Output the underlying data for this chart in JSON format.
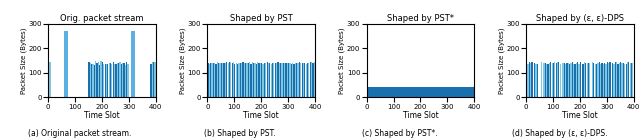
{
  "title_a": "Orig. packet stream",
  "title_b": "Shaped by PST",
  "title_c": "Shaped by PST*",
  "title_d": "Shaped by (ε, ε)-DPS",
  "xlabel": "Time Slot",
  "ylabel": "Packet Size (Bytes)",
  "ylim": [
    0,
    300
  ],
  "xlim": [
    0,
    400
  ],
  "yticks": [
    0,
    100,
    200,
    300
  ],
  "xticks": [
    0,
    100,
    200,
    300,
    400
  ],
  "caption_a": "(a) Original packet stream.",
  "caption_b": "(b) Shaped by PST.",
  "caption_c": "(c) Shaped by PST*.",
  "caption_d": "(d) Shaped by (ε, ε)-DPS.",
  "bar_color_dark": "#1a6faf",
  "bar_color_light": "#7ec8e3",
  "bar_color_spike": "#5ab0e0",
  "constant_height": 140,
  "spike_height": 270,
  "pst_star_fill_color": "#1a6faf",
  "pst_star_fill_height": 42,
  "n_bars": 80
}
